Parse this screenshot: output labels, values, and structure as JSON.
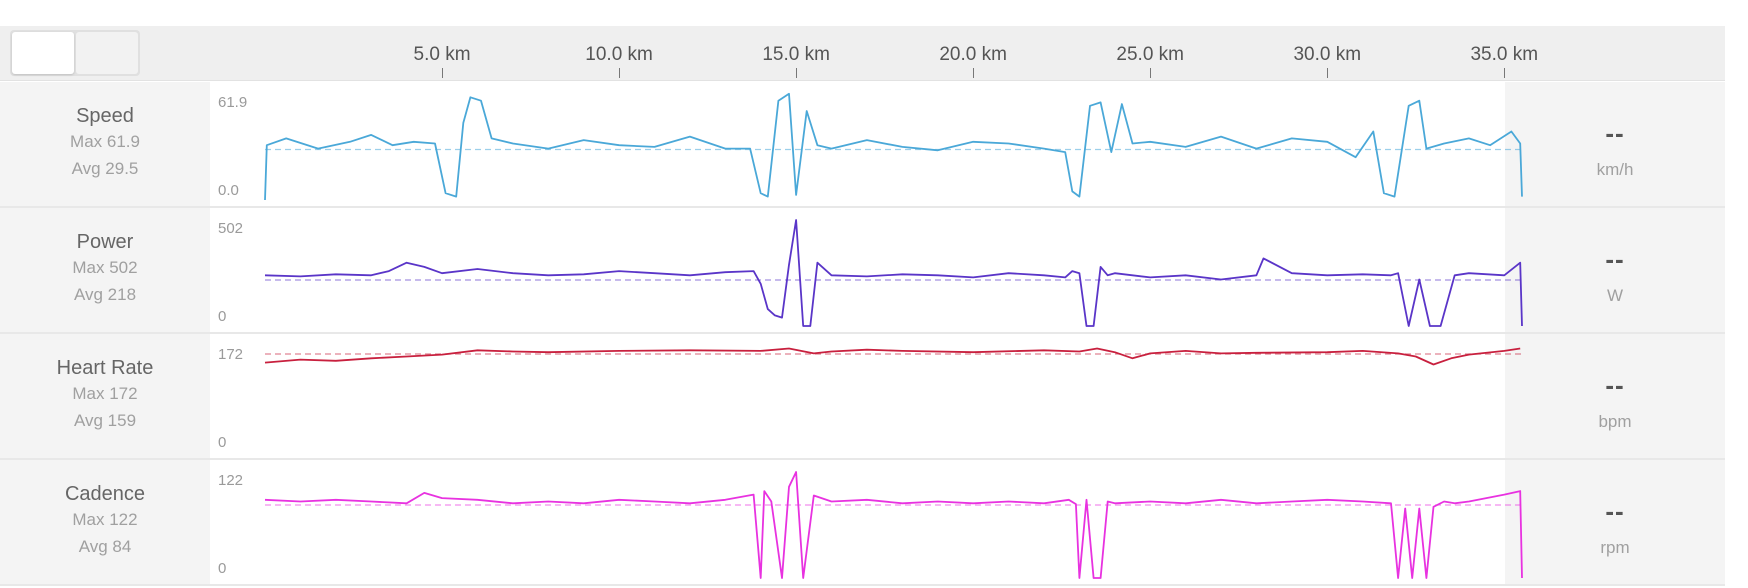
{
  "axis": {
    "ticks": [
      "5.0 km",
      "10.0 km",
      "15.0 km",
      "20.0 km",
      "25.0 km",
      "30.0 km",
      "35.0 km"
    ],
    "tick_values": [
      5,
      10,
      15,
      20,
      25,
      30,
      35
    ]
  },
  "rows": [
    {
      "name": "Speed",
      "max_text": "Max 61.9",
      "avg_text": "Avg 29.5",
      "ymax_label": "61.9",
      "ymin_label": "0.0",
      "value": "--",
      "unit": "km/h"
    },
    {
      "name": "Power",
      "max_text": "Max 502",
      "avg_text": "Avg 218",
      "ymax_label": "502",
      "ymin_label": "0",
      "value": "--",
      "unit": "W"
    },
    {
      "name": "Heart Rate",
      "max_text": "Max 172",
      "avg_text": "Avg 159",
      "ymax_label": "172",
      "ymin_label": "0",
      "value": "--",
      "unit": "bpm"
    },
    {
      "name": "Cadence",
      "max_text": "Max 122",
      "avg_text": "Avg 84",
      "ymax_label": "122",
      "ymin_label": "0",
      "value": "--",
      "unit": "rpm"
    }
  ],
  "chart_data": [
    {
      "type": "line",
      "name": "Speed",
      "color": "#4aa8d8",
      "ylim": [
        0,
        61.9
      ],
      "avg": 29.5,
      "x": [
        0,
        0.05,
        0.6,
        1.5,
        2.4,
        3.0,
        3.6,
        4.2,
        4.8,
        5.1,
        5.4,
        5.6,
        5.8,
        6.1,
        6.4,
        7.0,
        8.0,
        9.0,
        10.0,
        11.0,
        12.0,
        13.0,
        13.7,
        14.0,
        14.2,
        14.5,
        14.8,
        15.0,
        15.3,
        15.6,
        16.0,
        17.0,
        18.0,
        19.0,
        20.0,
        21.0,
        22.0,
        22.6,
        22.8,
        23.0,
        23.3,
        23.6,
        23.9,
        24.2,
        24.5,
        25.0,
        26.0,
        27.0,
        28.0,
        29.0,
        30.0,
        30.8,
        31.3,
        31.6,
        31.9,
        32.3,
        32.6,
        32.8,
        33.3,
        34.0,
        34.6,
        35.2,
        35.45,
        35.5
      ],
      "y": [
        0,
        32,
        36,
        30,
        34,
        38,
        32,
        34,
        33,
        4,
        2,
        45,
        60,
        58,
        36,
        33,
        30,
        35,
        32,
        31,
        37,
        30,
        30,
        4,
        2,
        58,
        62,
        3,
        52,
        32,
        30,
        35,
        31,
        29,
        34,
        33,
        30,
        28,
        5,
        2,
        55,
        57,
        28,
        56,
        33,
        34,
        31,
        37,
        30,
        36,
        34,
        25,
        40,
        4,
        2,
        55,
        58,
        30,
        33,
        36,
        32,
        40,
        33,
        2
      ],
      "avg_line": 29.5
    },
    {
      "type": "line",
      "name": "Power",
      "color": "#5a35c8",
      "ylim": [
        0,
        502
      ],
      "avg": 218,
      "x": [
        0,
        1.0,
        2.0,
        3.0,
        3.5,
        4.0,
        4.5,
        5.0,
        6.0,
        7.0,
        8.0,
        9.0,
        10.0,
        11.0,
        12.0,
        13.0,
        13.8,
        14.0,
        14.2,
        14.4,
        14.6,
        14.8,
        15.0,
        15.2,
        15.4,
        15.6,
        16.0,
        17.0,
        18.0,
        19.0,
        20.0,
        21.0,
        22.0,
        22.6,
        22.8,
        23.0,
        23.2,
        23.4,
        23.6,
        23.8,
        24.0,
        25.0,
        26.0,
        27.0,
        28.0,
        28.2,
        29.0,
        30.0,
        31.0,
        31.8,
        32.0,
        32.3,
        32.6,
        32.9,
        33.2,
        33.6,
        34.0,
        35.0,
        35.45,
        35.5
      ],
      "y": [
        240,
        235,
        245,
        240,
        260,
        300,
        280,
        250,
        270,
        250,
        240,
        245,
        260,
        250,
        240,
        255,
        260,
        200,
        80,
        50,
        40,
        290,
        502,
        0,
        0,
        300,
        240,
        235,
        245,
        240,
        230,
        250,
        240,
        230,
        260,
        250,
        0,
        0,
        280,
        240,
        250,
        230,
        240,
        220,
        240,
        320,
        250,
        240,
        245,
        240,
        250,
        0,
        220,
        0,
        0,
        240,
        250,
        240,
        300,
        0
      ],
      "avg_line": 218
    },
    {
      "type": "line",
      "name": "Heart Rate",
      "color": "#c8203e",
      "ylim": [
        0,
        172
      ],
      "avg": 159,
      "x": [
        0,
        1.0,
        2.0,
        3.0,
        4.0,
        5.0,
        6.0,
        7.0,
        8.0,
        10.0,
        12.0,
        14.0,
        14.8,
        15.5,
        16.0,
        17.0,
        18.0,
        20.0,
        22.0,
        23.0,
        23.5,
        24.0,
        24.5,
        25.0,
        26.0,
        27.0,
        28.0,
        30.0,
        31.0,
        32.0,
        32.5,
        33.0,
        33.5,
        34.0,
        35.0,
        35.45
      ],
      "y": [
        145,
        150,
        148,
        152,
        155,
        158,
        165,
        163,
        162,
        164,
        165,
        164,
        168,
        160,
        163,
        166,
        164,
        162,
        165,
        163,
        168,
        162,
        152,
        160,
        164,
        160,
        161,
        162,
        164,
        160,
        155,
        142,
        152,
        158,
        164,
        168
      ],
      "avg_line": 159
    },
    {
      "type": "line",
      "name": "Cadence",
      "color": "#e832e0",
      "ylim": [
        0,
        122
      ],
      "avg": 84,
      "x": [
        0,
        1.0,
        2.0,
        3.0,
        4.0,
        4.5,
        5.0,
        6.0,
        7.0,
        8.0,
        9.0,
        10.0,
        11.0,
        12.0,
        13.0,
        13.8,
        14.0,
        14.1,
        14.3,
        14.6,
        14.8,
        15.0,
        15.2,
        15.5,
        16.0,
        17.0,
        18.0,
        19.0,
        20.0,
        21.0,
        22.0,
        22.7,
        22.9,
        23.0,
        23.2,
        23.4,
        23.6,
        23.8,
        24.0,
        25.0,
        26.0,
        27.0,
        28.0,
        29.0,
        30.0,
        31.0,
        31.8,
        32.0,
        32.2,
        32.4,
        32.6,
        32.8,
        33.0,
        33.3,
        33.6,
        34.0,
        35.0,
        35.45,
        35.5
      ],
      "y": [
        90,
        88,
        90,
        88,
        86,
        98,
        92,
        90,
        86,
        88,
        86,
        90,
        88,
        86,
        90,
        96,
        0,
        100,
        88,
        0,
        105,
        122,
        0,
        95,
        88,
        90,
        86,
        88,
        86,
        88,
        86,
        90,
        85,
        0,
        90,
        0,
        0,
        88,
        86,
        88,
        86,
        90,
        86,
        88,
        90,
        88,
        86,
        0,
        80,
        0,
        80,
        0,
        82,
        88,
        86,
        88,
        96,
        100,
        0
      ],
      "avg_line": 84
    }
  ]
}
